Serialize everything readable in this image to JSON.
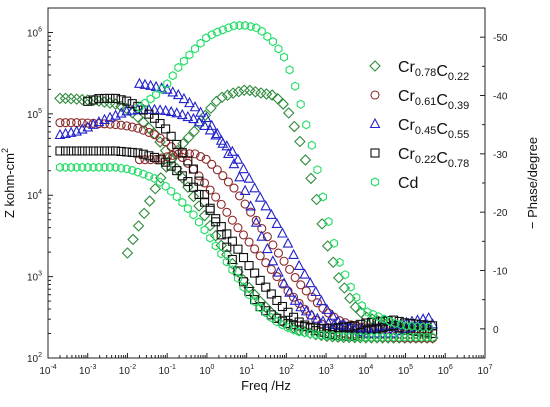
{
  "chart_data": {
    "type": "scatter",
    "title": "",
    "xlabel": "Freq /Hz",
    "ylabel_left": "Z kohm-cm",
    "ylabel_left_sup": "2",
    "ylabel_right": "− Phase/degree",
    "x_scale": "log",
    "y_left_scale": "log",
    "xlim": [
      0.0001,
      10000000
    ],
    "ylim_left": [
      100,
      2000000
    ],
    "ylim_right": [
      -5,
      55
    ],
    "grid": false,
    "legend_placement": "top-right, inside",
    "x_ticks": [
      "10-4",
      "10-3",
      "10-2",
      "10-1",
      "100",
      "101",
      "102",
      "103",
      "104",
      "105",
      "106",
      "107"
    ],
    "y_left_ticks": [
      "102",
      "103",
      "104",
      "105",
      "106"
    ],
    "y_right_ticks": [
      "0",
      "-10",
      "-20",
      "-30",
      "-40",
      "-50"
    ],
    "series": [
      {
        "name": "Cr0.78C0.22",
        "name_main": [
          "Cr",
          "C"
        ],
        "name_sub": [
          "0.78",
          "0.22"
        ],
        "marker": "diamond",
        "color": "#2e8b3c",
        "impedance": {
          "x": [
            0.0002,
            0.0003,
            0.0005,
            0.001,
            0.002,
            0.005,
            0.01,
            0.02,
            0.05,
            0.1,
            0.2,
            0.5,
            1,
            2,
            5,
            10,
            20,
            50,
            100,
            200,
            500,
            1000,
            2000,
            5000,
            10000,
            50000,
            100000,
            500000
          ],
          "y": [
            155000,
            155000,
            152000,
            148000,
            143000,
            132000,
            115000,
            88000,
            56000,
            33000,
            19000,
            9000,
            5000,
            2700,
            1300,
            800,
            520,
            330,
            260,
            220,
            195,
            185,
            180,
            178,
            177,
            176,
            176,
            176
          ]
        },
        "phase": {
          "x": [
            0.01,
            0.02,
            0.05,
            0.1,
            0.2,
            0.5,
            1,
            2,
            5,
            10,
            20,
            50,
            100,
            200,
            500,
            1000,
            2000,
            5000,
            10000,
            50000,
            100000,
            500000
          ],
          "y": [
            13,
            18,
            24,
            28,
            31,
            34,
            37,
            39.5,
            40.5,
            41,
            40.5,
            40,
            38,
            33,
            24,
            15,
            9,
            4,
            2,
            0.5,
            0,
            -0.5
          ]
        }
      },
      {
        "name": "Cr0.61C0.39",
        "name_main": [
          "Cr",
          "C"
        ],
        "name_sub": [
          "0.61",
          "0.39"
        ],
        "marker": "circle",
        "color": "#8b2a2a",
        "impedance": {
          "x": [
            0.0002,
            0.0005,
            0.001,
            0.002,
            0.005,
            0.01,
            0.02,
            0.05,
            0.1,
            0.2,
            0.5,
            1,
            2,
            5,
            10,
            20,
            50,
            100,
            200,
            500,
            1000,
            2000,
            5000,
            10000,
            50000,
            100000,
            500000
          ],
          "y": [
            78000,
            78000,
            77000,
            76000,
            74000,
            71000,
            66000,
            55000,
            44000,
            32000,
            20000,
            13000,
            8500,
            4500,
            2900,
            1900,
            1100,
            700,
            480,
            300,
            240,
            210,
            190,
            182,
            178,
            176,
            175
          ]
        },
        "phase": {
          "x": [
            0.02,
            0.05,
            0.1,
            0.2,
            0.5,
            1,
            2,
            5,
            10,
            20,
            50,
            100,
            200,
            500,
            1000,
            2000,
            5000,
            10000,
            50000,
            100000,
            500000
          ],
          "y": [
            29,
            29,
            29.5,
            30,
            30,
            29,
            27,
            24,
            21,
            18,
            14,
            11,
            8,
            5,
            3,
            1.5,
            0.5,
            0.2,
            0,
            0,
            0
          ]
        }
      },
      {
        "name": "Cr0.45C0.55",
        "name_main": [
          "Cr",
          "C"
        ],
        "name_sub": [
          "0.45",
          "0.55"
        ],
        "marker": "triangle",
        "color": "#2222cc",
        "impedance": {
          "x": [
            0.0002,
            0.0005,
            0.001,
            0.002,
            0.005,
            0.01,
            0.02,
            0.05,
            0.1,
            0.2,
            0.5,
            1,
            2,
            5,
            10,
            20,
            50,
            100,
            200,
            500,
            1000,
            2000,
            5000,
            10000,
            50000,
            100000,
            500000
          ],
          "y": [
            55000,
            60000,
            68000,
            80000,
            95000,
            108000,
            112000,
            112000,
            108000,
            100000,
            85000,
            68000,
            50000,
            32000,
            18000,
            10000,
            5000,
            2800,
            1400,
            700,
            400,
            280,
            220,
            200,
            200,
            230,
            260
          ]
        },
        "phase": {
          "x": [
            0.02,
            0.05,
            0.1,
            0.2,
            0.5,
            1,
            2,
            5,
            10,
            20,
            50,
            100,
            200,
            500,
            1000,
            2000,
            5000,
            10000,
            50000,
            100000,
            500000
          ],
          "y": [
            42,
            41.5,
            41,
            40,
            38,
            36,
            33,
            28,
            23,
            17,
            11,
            7,
            4,
            2,
            1,
            0.5,
            0.2,
            0,
            0.5,
            1,
            2
          ]
        }
      },
      {
        "name": "Cr0.22C0.78",
        "name_main": [
          "Cr",
          "C"
        ],
        "name_sub": [
          "0.22",
          "0.78"
        ],
        "marker": "square",
        "color": "#111111",
        "impedance": {
          "x": [
            0.0002,
            0.0005,
            0.001,
            0.002,
            0.005,
            0.01,
            0.02,
            0.05,
            0.1,
            0.2,
            0.5,
            1,
            2,
            5,
            10,
            20,
            50,
            100,
            200,
            500,
            1000,
            2000,
            5000,
            10000,
            50000,
            100000,
            500000
          ],
          "y": [
            35000,
            35000,
            35000,
            35000,
            35000,
            34000,
            33000,
            29000,
            25000,
            19000,
            12000,
            7500,
            4500,
            2500,
            1500,
            950,
            550,
            380,
            280,
            220,
            200,
            190,
            185,
            220,
            250,
            220,
            200
          ]
        },
        "phase": {
          "x": [
            0.001,
            0.002,
            0.005,
            0.01,
            0.02,
            0.05,
            0.1,
            0.2,
            0.5,
            1,
            2,
            5,
            10,
            20,
            50,
            100,
            200,
            500,
            1000,
            2000,
            5000,
            10000,
            50000,
            100000,
            500000
          ],
          "y": [
            39,
            39.5,
            39.5,
            39,
            38,
            36,
            34,
            31,
            27,
            22,
            17,
            11,
            7,
            4,
            2,
            1,
            0.5,
            0.2,
            0,
            0.2,
            0.5,
            1,
            1.5,
            1,
            0.5
          ]
        }
      },
      {
        "name": "Cd",
        "name_main": [
          "Cd"
        ],
        "name_sub": [],
        "marker": "hexagon",
        "color": "#22dd66",
        "impedance": {
          "x": [
            0.0002,
            0.0005,
            0.001,
            0.002,
            0.005,
            0.01,
            0.02,
            0.05,
            0.1,
            0.2,
            0.5,
            1,
            2,
            5,
            10,
            20,
            50,
            100,
            200,
            500,
            1000,
            2000,
            5000,
            10000,
            50000,
            100000,
            500000
          ],
          "y": [
            22000,
            22000,
            22000,
            22000,
            22000,
            21000,
            19000,
            16000,
            12500,
            9000,
            5500,
            3400,
            2100,
            1100,
            650,
            430,
            290,
            240,
            210,
            195,
            190,
            185,
            182,
            180,
            180,
            180,
            180
          ]
        },
        "phase": {
          "x": [
            0.02,
            0.05,
            0.1,
            0.2,
            0.5,
            1,
            2,
            5,
            10,
            20,
            50,
            100,
            200,
            500,
            1000,
            2000,
            5000,
            10000,
            50000,
            100000,
            500000
          ],
          "y": [
            38,
            40,
            42,
            45,
            48,
            50,
            51,
            52,
            52,
            51.5,
            49,
            46,
            40,
            30,
            20,
            12,
            6,
            3,
            1,
            0.5,
            0.2
          ]
        }
      }
    ]
  }
}
